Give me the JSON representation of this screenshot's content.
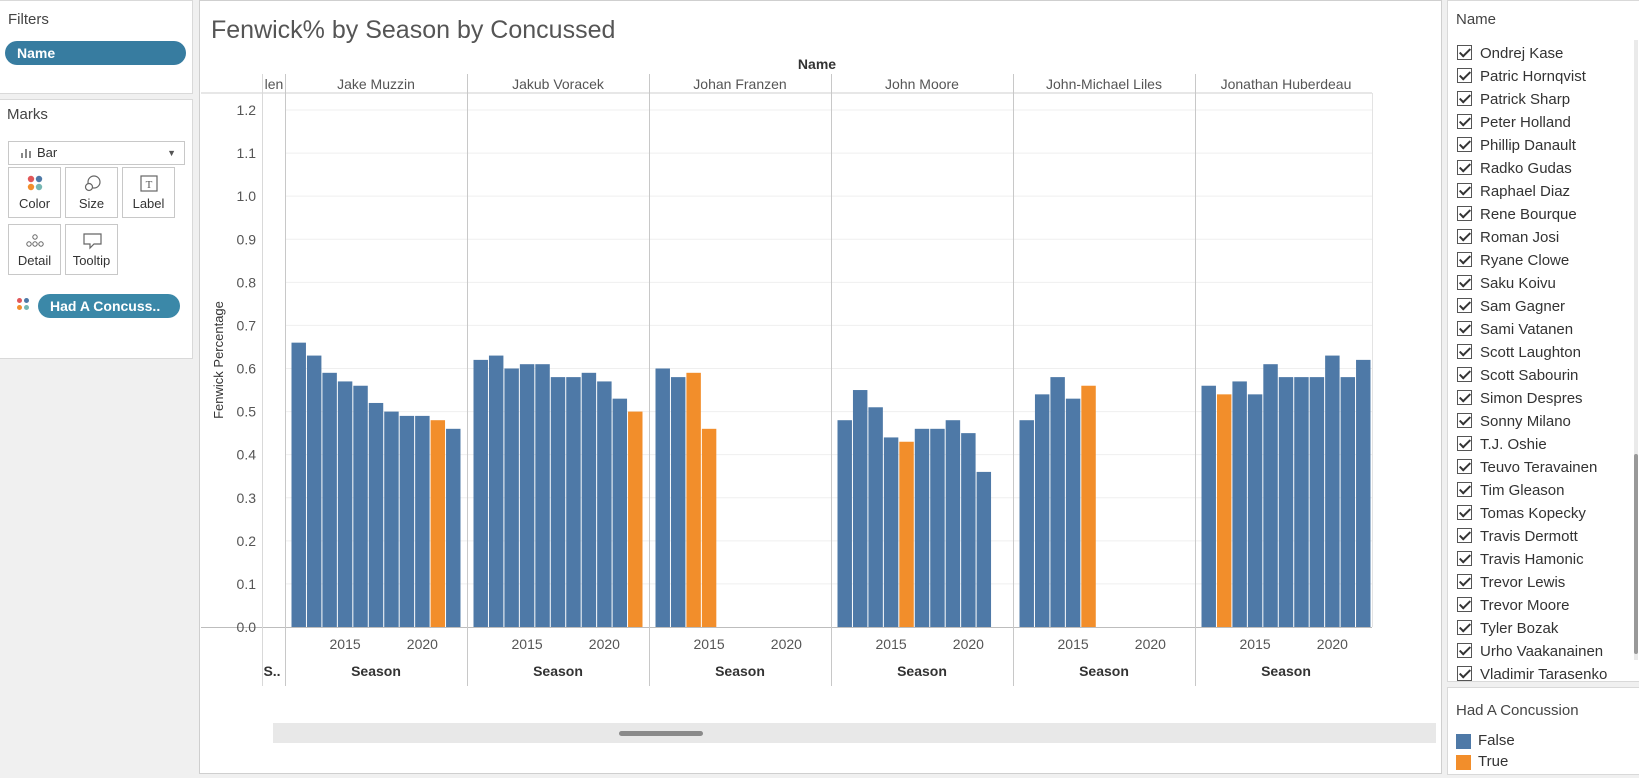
{
  "filters": {
    "title": "Filters",
    "name_pill": "Name"
  },
  "marks": {
    "title": "Marks",
    "type_label": "Bar",
    "buttons": {
      "color": "Color",
      "size": "Size",
      "label": "Label",
      "detail": "Detail",
      "tooltip": "Tooltip"
    },
    "color_pill": "Had A Concuss.."
  },
  "viz": {
    "title": "Fenwick% by Season by Concussed",
    "column_header": "Name",
    "y_axis_label": "Fenwick Percentage",
    "x_axis_label": "Season",
    "truncated_left_header": "len",
    "truncated_left_axis": "S..",
    "colors": {
      "false": "#4e79a7",
      "true": "#f28e2b"
    }
  },
  "chart_data": {
    "type": "bar",
    "title": "Fenwick% by Season by Concussed",
    "xlabel": "Season",
    "ylabel": "Fenwick Percentage",
    "ylim": [
      0,
      1.2
    ],
    "yticks": [
      0.0,
      0.1,
      0.2,
      0.3,
      0.4,
      0.5,
      0.6,
      0.7,
      0.8,
      0.9,
      1.0,
      1.1,
      1.2
    ],
    "xticks": [
      2015,
      2020
    ],
    "color_legend": {
      "False": "#4e79a7",
      "True": "#f28e2b"
    },
    "panels": [
      {
        "name": "Jake Muzzin",
        "seasons": [
          2012,
          2013,
          2014,
          2015,
          2016,
          2017,
          2018,
          2019,
          2020,
          2021,
          2022
        ],
        "values": [
          0.66,
          0.63,
          0.59,
          0.57,
          0.56,
          0.52,
          0.5,
          0.49,
          0.49,
          0.48,
          0.46
        ],
        "concussed": [
          false,
          false,
          false,
          false,
          false,
          false,
          false,
          false,
          false,
          true,
          false
        ]
      },
      {
        "name": "Jakub Voracek",
        "seasons": [
          2012,
          2013,
          2014,
          2015,
          2016,
          2017,
          2018,
          2019,
          2020,
          2021,
          2022
        ],
        "values": [
          0.62,
          0.63,
          0.6,
          0.61,
          0.61,
          0.58,
          0.58,
          0.59,
          0.57,
          0.53,
          0.5
        ],
        "concussed": [
          false,
          false,
          false,
          false,
          false,
          false,
          false,
          false,
          false,
          false,
          true
        ]
      },
      {
        "name": "Johan Franzen",
        "seasons": [
          2012,
          2013,
          2014,
          2015
        ],
        "values": [
          0.6,
          0.58,
          0.59,
          0.46
        ],
        "concussed": [
          false,
          false,
          true,
          true
        ]
      },
      {
        "name": "John Moore",
        "seasons": [
          2012,
          2013,
          2014,
          2015,
          2016,
          2017,
          2018,
          2019,
          2020,
          2021
        ],
        "values": [
          0.48,
          0.55,
          0.51,
          0.44,
          0.43,
          0.46,
          0.46,
          0.48,
          0.45,
          0.36
        ],
        "concussed": [
          false,
          false,
          false,
          false,
          true,
          false,
          false,
          false,
          false,
          false
        ]
      },
      {
        "name": "John-Michael Liles",
        "seasons": [
          2012,
          2013,
          2014,
          2015,
          2016
        ],
        "values": [
          0.48,
          0.54,
          0.58,
          0.53,
          0.56
        ],
        "concussed": [
          false,
          false,
          false,
          false,
          true
        ]
      },
      {
        "name": "Jonathan Huberdeau",
        "seasons": [
          2012,
          2013,
          2014,
          2015,
          2016,
          2017,
          2018,
          2019,
          2020,
          2021,
          2022
        ],
        "values": [
          0.56,
          0.54,
          0.57,
          0.54,
          0.61,
          0.58,
          0.58,
          0.58,
          0.63,
          0.58,
          0.62
        ],
        "concussed": [
          false,
          true,
          false,
          false,
          false,
          false,
          false,
          false,
          false,
          false,
          false
        ]
      }
    ]
  },
  "name_filter": {
    "title": "Name",
    "items": [
      "Ondrej Kase",
      "Patric Hornqvist",
      "Patrick Sharp",
      "Peter Holland",
      "Phillip Danault",
      "Radko Gudas",
      "Raphael Diaz",
      "Rene Bourque",
      "Roman Josi",
      "Ryane Clowe",
      "Saku Koivu",
      "Sam Gagner",
      "Sami Vatanen",
      "Scott Laughton",
      "Scott Sabourin",
      "Simon Despres",
      "Sonny Milano",
      "T.J. Oshie",
      "Teuvo Teravainen",
      "Tim Gleason",
      "Tomas Kopecky",
      "Travis Dermott",
      "Travis Hamonic",
      "Trevor Lewis",
      "Trevor Moore",
      "Tyler Bozak",
      "Urho Vaakanainen",
      "Vladimir Tarasenko"
    ]
  },
  "legend": {
    "title": "Had A Concussion",
    "items": [
      {
        "label": "False",
        "color": "#4e79a7"
      },
      {
        "label": "True",
        "color": "#f28e2b"
      }
    ]
  }
}
